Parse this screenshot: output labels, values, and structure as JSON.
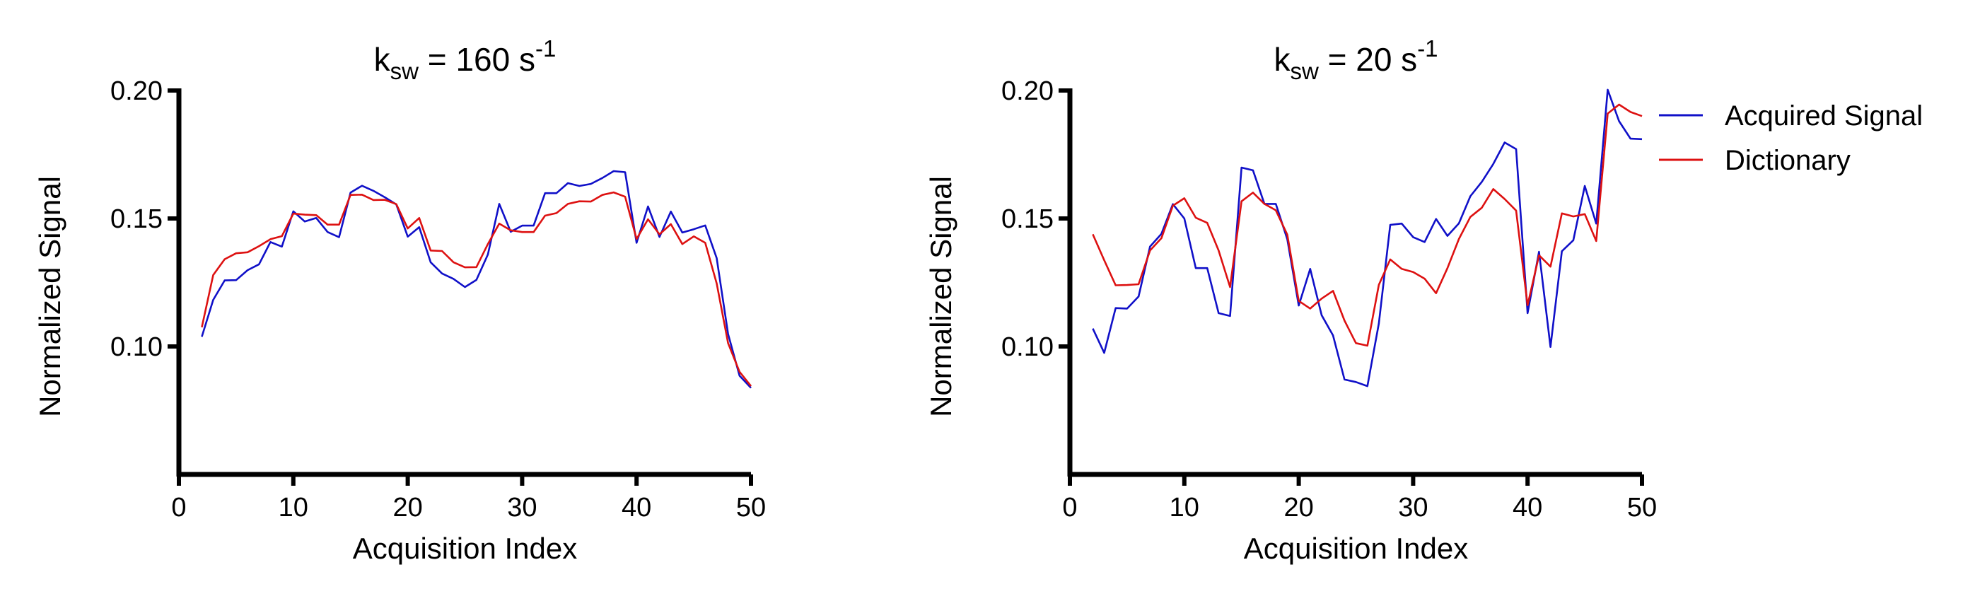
{
  "chart_data": [
    {
      "type": "line",
      "title": {
        "base": "k",
        "sub": "sw",
        "rest": " = 160 s",
        "sup": "-1"
      },
      "xlabel": "Acquisition Index",
      "ylabel": "Normalized Signal",
      "xlim": [
        0,
        50
      ],
      "ylim": [
        0.05,
        0.2
      ],
      "xticks": [
        0,
        10,
        20,
        30,
        40,
        50
      ],
      "xtick_labels": [
        "0",
        "10",
        "20",
        "30",
        "40",
        "50"
      ],
      "yticks": [
        0.1,
        0.15,
        0.2
      ],
      "ytick_labels": [
        "0.10",
        "0.15",
        "0.20"
      ],
      "grid": false,
      "legend": null,
      "x": [
        2,
        3,
        4,
        5,
        6,
        7,
        8,
        9,
        10,
        11,
        12,
        13,
        14,
        15,
        16,
        17,
        18,
        19,
        20,
        21,
        22,
        23,
        24,
        25,
        26,
        27,
        28,
        29,
        30,
        31,
        32,
        33,
        34,
        35,
        36,
        37,
        38,
        39,
        40,
        41,
        42,
        43,
        44,
        45,
        46,
        47,
        48,
        49,
        50
      ],
      "series": [
        {
          "name": "Acquired Signal",
          "color": "#1010c8",
          "values": [
            0.1038,
            0.1182,
            0.1258,
            0.1259,
            0.1298,
            0.1321,
            0.1408,
            0.139,
            0.1528,
            0.1488,
            0.1502,
            0.1447,
            0.1427,
            0.1601,
            0.1628,
            0.1608,
            0.1583,
            0.1555,
            0.1429,
            0.1466,
            0.1329,
            0.1285,
            0.1264,
            0.1232,
            0.126,
            0.1359,
            0.1557,
            0.1448,
            0.1472,
            0.1472,
            0.1599,
            0.1599,
            0.1638,
            0.1627,
            0.1635,
            0.1658,
            0.1685,
            0.1681,
            0.1405,
            0.1547,
            0.1428,
            0.1527,
            0.1445,
            0.1458,
            0.1473,
            0.1345,
            0.1049,
            0.0886,
            0.0838
          ]
        },
        {
          "name": "Dictionary",
          "color": "#dd1111",
          "values": [
            0.1075,
            0.1279,
            0.1341,
            0.1364,
            0.1368,
            0.1392,
            0.1419,
            0.1431,
            0.1519,
            0.1515,
            0.1513,
            0.1476,
            0.1476,
            0.1592,
            0.1593,
            0.1572,
            0.1573,
            0.1556,
            0.1461,
            0.1502,
            0.1375,
            0.1373,
            0.1329,
            0.1309,
            0.131,
            0.14,
            0.148,
            0.1454,
            0.1447,
            0.1447,
            0.1511,
            0.1521,
            0.1557,
            0.1567,
            0.1566,
            0.1592,
            0.1602,
            0.1585,
            0.142,
            0.1497,
            0.1438,
            0.1478,
            0.14,
            0.143,
            0.1405,
            0.1246,
            0.1013,
            0.0901,
            0.0845
          ]
        }
      ]
    },
    {
      "type": "line",
      "title": {
        "base": "k",
        "sub": "sw",
        "rest": " = 20 s",
        "sup": "-1"
      },
      "xlabel": "Acquisition Index",
      "ylabel": "Normalized Signal",
      "xlim": [
        0,
        50
      ],
      "ylim": [
        0.05,
        0.2
      ],
      "xticks": [
        0,
        10,
        20,
        30,
        40,
        50
      ],
      "xtick_labels": [
        "0",
        "10",
        "20",
        "30",
        "40",
        "50"
      ],
      "yticks": [
        0.1,
        0.15,
        0.2
      ],
      "ytick_labels": [
        "0.10",
        "0.15",
        "0.20"
      ],
      "grid": false,
      "legend": {
        "position": "right",
        "entries": [
          "Acquired Signal",
          "Dictionary"
        ]
      },
      "x": [
        2,
        3,
        4,
        5,
        6,
        7,
        8,
        9,
        10,
        11,
        12,
        13,
        14,
        15,
        16,
        17,
        18,
        19,
        20,
        21,
        22,
        23,
        24,
        25,
        26,
        27,
        28,
        29,
        30,
        31,
        32,
        33,
        34,
        35,
        36,
        37,
        38,
        39,
        40,
        41,
        42,
        43,
        44,
        45,
        46,
        47,
        48,
        49,
        50
      ],
      "series": [
        {
          "name": "Acquired Signal",
          "color": "#1010c8",
          "values": [
            0.107,
            0.0975,
            0.115,
            0.1148,
            0.1195,
            0.139,
            0.144,
            0.1556,
            0.15,
            0.1306,
            0.1306,
            0.113,
            0.1119,
            0.1699,
            0.1688,
            0.1557,
            0.1557,
            0.1419,
            0.116,
            0.1303,
            0.1122,
            0.1043,
            0.0871,
            0.0861,
            0.0845,
            0.109,
            0.1475,
            0.148,
            0.1427,
            0.1408,
            0.1498,
            0.1432,
            0.1481,
            0.1587,
            0.1643,
            0.1713,
            0.1797,
            0.1771,
            0.113,
            0.137,
            0.0998,
            0.1372,
            0.1415,
            0.1627,
            0.148,
            0.2003,
            0.188,
            0.1812,
            0.181
          ]
        },
        {
          "name": "Dictionary",
          "color": "#dd1111",
          "values": [
            0.1438,
            0.1337,
            0.1239,
            0.124,
            0.1243,
            0.1375,
            0.1423,
            0.155,
            0.1579,
            0.1503,
            0.1483,
            0.1375,
            0.1232,
            0.1567,
            0.1601,
            0.1557,
            0.1532,
            0.1437,
            0.1178,
            0.1148,
            0.1187,
            0.1217,
            0.1101,
            0.1013,
            0.1003,
            0.1241,
            0.134,
            0.1303,
            0.1291,
            0.1265,
            0.1208,
            0.1306,
            0.142,
            0.1506,
            0.1542,
            0.1615,
            0.1576,
            0.1531,
            0.1161,
            0.1356,
            0.1312,
            0.152,
            0.1508,
            0.1517,
            0.1412,
            0.191,
            0.1945,
            0.1916,
            0.19
          ]
        }
      ]
    }
  ]
}
